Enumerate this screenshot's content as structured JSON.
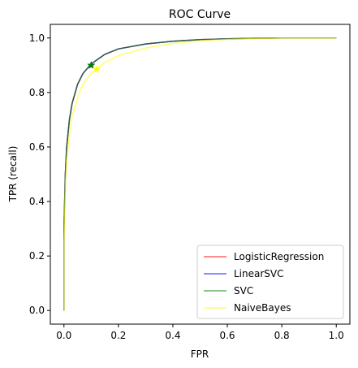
{
  "chart_data": {
    "type": "line",
    "title": "ROC Curve",
    "xlabel": "FPR",
    "ylabel": "TPR (recall)",
    "xlim": [
      -0.05,
      1.05
    ],
    "ylim": [
      -0.05,
      1.05
    ],
    "xticks": [
      "0.0",
      "0.2",
      "0.4",
      "0.6",
      "0.8",
      "1.0"
    ],
    "yticks": [
      "0.0",
      "0.2",
      "0.4",
      "0.6",
      "0.8",
      "1.0"
    ],
    "grid": false,
    "legend_position": "lower-right",
    "series": [
      {
        "name": "LogisticRegression",
        "color": "#ff0000",
        "x": [
          0,
          0,
          0.005,
          0.01,
          0.02,
          0.03,
          0.05,
          0.07,
          0.1,
          0.15,
          0.2,
          0.3,
          0.4,
          0.5,
          0.6,
          0.7,
          0.8,
          1.0
        ],
        "y": [
          0,
          0.3,
          0.5,
          0.6,
          0.7,
          0.76,
          0.83,
          0.87,
          0.905,
          0.94,
          0.96,
          0.978,
          0.988,
          0.994,
          0.997,
          0.999,
          1.0,
          1.0
        ]
      },
      {
        "name": "LinearSVC",
        "color": "#0000ff",
        "x": [
          0,
          0,
          0.005,
          0.01,
          0.02,
          0.03,
          0.05,
          0.07,
          0.1,
          0.15,
          0.2,
          0.3,
          0.4,
          0.5,
          0.6,
          0.7,
          0.8,
          1.0
        ],
        "y": [
          0,
          0.3,
          0.5,
          0.6,
          0.7,
          0.76,
          0.83,
          0.87,
          0.905,
          0.94,
          0.96,
          0.978,
          0.988,
          0.994,
          0.997,
          0.999,
          1.0,
          1.0
        ]
      },
      {
        "name": "SVC",
        "color": "#008000",
        "x": [
          0,
          0,
          0.005,
          0.01,
          0.02,
          0.03,
          0.05,
          0.07,
          0.1,
          0.15,
          0.2,
          0.3,
          0.4,
          0.5,
          0.6,
          0.7,
          0.8,
          1.0
        ],
        "y": [
          0,
          0.3,
          0.5,
          0.6,
          0.7,
          0.76,
          0.83,
          0.87,
          0.905,
          0.94,
          0.96,
          0.978,
          0.988,
          0.994,
          0.997,
          0.999,
          1.0,
          1.0
        ]
      },
      {
        "name": "NaiveBayes",
        "color": "#ffff00",
        "x": [
          0,
          0,
          0.005,
          0.01,
          0.02,
          0.03,
          0.05,
          0.07,
          0.1,
          0.12,
          0.15,
          0.2,
          0.3,
          0.4,
          0.5,
          0.6,
          0.7,
          0.8,
          1.0
        ],
        "y": [
          0,
          0.25,
          0.45,
          0.55,
          0.65,
          0.71,
          0.78,
          0.83,
          0.87,
          0.885,
          0.91,
          0.935,
          0.963,
          0.98,
          0.99,
          0.995,
          0.998,
          1.0,
          1.0
        ]
      }
    ],
    "markers": [
      {
        "series": "LogisticRegression",
        "x": 0.1,
        "y": 0.9,
        "color": "#ff0000"
      },
      {
        "series": "LinearSVC",
        "x": 0.1,
        "y": 0.9,
        "color": "#0000ff"
      },
      {
        "series": "SVC",
        "x": 0.1,
        "y": 0.9,
        "color": "#008000"
      },
      {
        "series": "NaiveBayes",
        "x": 0.12,
        "y": 0.885,
        "color": "#ffff00"
      }
    ]
  }
}
